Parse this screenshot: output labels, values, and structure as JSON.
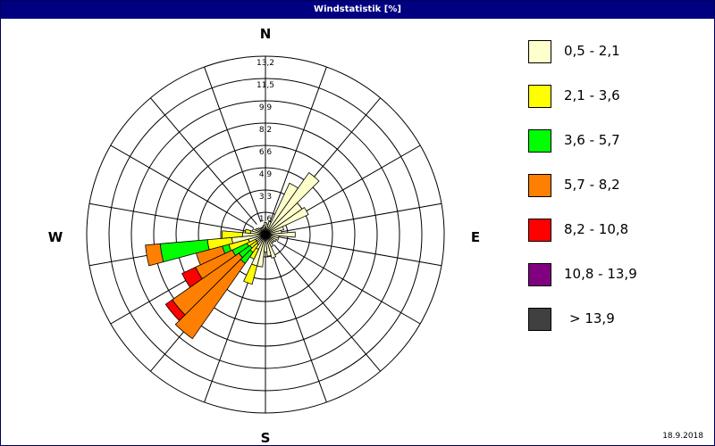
{
  "window": {
    "title": "Windstatistik [%]"
  },
  "footer": {
    "date": "18.9.2018"
  },
  "chart_data": {
    "type": "wind-rose",
    "title": "Windstatistik [%]",
    "compass": {
      "north": "N",
      "east": "E",
      "south": "S",
      "west": "W"
    },
    "radial_ticks": [
      "1,6",
      "3,3",
      "4,9",
      "6,6",
      "8,2",
      "9,9",
      "11,5",
      "13,2"
    ],
    "r_max": 13.2,
    "sectors": 36,
    "sector_width_deg": 10,
    "bins": [
      {
        "label": "0,5 - 2,1",
        "color": "#ffffcc"
      },
      {
        "label": "2,1 - 3,6",
        "color": "#ffff00"
      },
      {
        "label": "3,6 - 5,7",
        "color": "#00ff00"
      },
      {
        "label": "5,7 - 8,2",
        "color": "#ff8000"
      },
      {
        "label": "8,2 - 10,8",
        "color": "#ff0000"
      },
      {
        "label": "10,8 - 13,9",
        "color": "#800080"
      },
      {
        "label": "> 13,9",
        "color": "#404040"
      }
    ],
    "directions": [
      {
        "deg": 0,
        "values": [
          0.9,
          0,
          0,
          0,
          0,
          0,
          0
        ]
      },
      {
        "deg": 10,
        "values": [
          0.8,
          0,
          0,
          0,
          0,
          0,
          0
        ]
      },
      {
        "deg": 20,
        "values": [
          1.0,
          0,
          0,
          0,
          0,
          0,
          0
        ]
      },
      {
        "deg": 30,
        "values": [
          4.2,
          0,
          0,
          0,
          0,
          0,
          0
        ]
      },
      {
        "deg": 40,
        "values": [
          5.6,
          0,
          0,
          0,
          0,
          0,
          0
        ]
      },
      {
        "deg": 50,
        "values": [
          3.3,
          0,
          0,
          0,
          0,
          0,
          0
        ]
      },
      {
        "deg": 60,
        "values": [
          3.5,
          0,
          0,
          0,
          0,
          0,
          0
        ]
      },
      {
        "deg": 70,
        "values": [
          1.4,
          0,
          0,
          0,
          0,
          0,
          0
        ]
      },
      {
        "deg": 80,
        "values": [
          1.2,
          0,
          0,
          0,
          0,
          0,
          0
        ]
      },
      {
        "deg": 90,
        "values": [
          2.2,
          0,
          0,
          0,
          0,
          0,
          0
        ]
      },
      {
        "deg": 100,
        "values": [
          1.0,
          0,
          0,
          0,
          0,
          0,
          0
        ]
      },
      {
        "deg": 110,
        "values": [
          1.0,
          0,
          0,
          0,
          0,
          0,
          0
        ]
      },
      {
        "deg": 120,
        "values": [
          0.9,
          0,
          0,
          0,
          0,
          0,
          0
        ]
      },
      {
        "deg": 130,
        "values": [
          0.8,
          0,
          0,
          0,
          0,
          0,
          0
        ]
      },
      {
        "deg": 140,
        "values": [
          0.8,
          0,
          0,
          0,
          0,
          0,
          0
        ]
      },
      {
        "deg": 150,
        "values": [
          1.0,
          0,
          0,
          0,
          0,
          0,
          0
        ]
      },
      {
        "deg": 160,
        "values": [
          1.8,
          0,
          0,
          0,
          0,
          0,
          0
        ]
      },
      {
        "deg": 170,
        "values": [
          1.6,
          0,
          0,
          0,
          0,
          0,
          0
        ]
      },
      {
        "deg": 180,
        "values": [
          1.3,
          0,
          0,
          0,
          0,
          0,
          0
        ]
      },
      {
        "deg": 190,
        "values": [
          2.4,
          0,
          0,
          0,
          0,
          0,
          0
        ]
      },
      {
        "deg": 200,
        "values": [
          2.4,
          1.4,
          0,
          0,
          0,
          0,
          0
        ]
      },
      {
        "deg": 210,
        "values": [
          1.2,
          0.8,
          0,
          0,
          0,
          0,
          0
        ]
      },
      {
        "deg": 220,
        "values": [
          0.9,
          0.7,
          1.0,
          6.8,
          0,
          0,
          0
        ]
      },
      {
        "deg": 230,
        "values": [
          0.8,
          0.6,
          1.0,
          6.0,
          0.6,
          0,
          0
        ]
      },
      {
        "deg": 240,
        "values": [
          0.8,
          0.7,
          1.2,
          3.0,
          1.1,
          0,
          0
        ]
      },
      {
        "deg": 250,
        "values": [
          1.3,
          1.5,
          0.5,
          2.0,
          0,
          0,
          0
        ]
      },
      {
        "deg": 260,
        "values": [
          2.5,
          1.8,
          3.5,
          1.1,
          0,
          0,
          0
        ]
      },
      {
        "deg": 270,
        "values": [
          1.7,
          1.5,
          0,
          0,
          0,
          0,
          0
        ]
      },
      {
        "deg": 280,
        "values": [
          1.1,
          0.4,
          0,
          0,
          0,
          0,
          0
        ]
      },
      {
        "deg": 290,
        "values": [
          1.0,
          0,
          0,
          0,
          0,
          0,
          0
        ]
      },
      {
        "deg": 300,
        "values": [
          0.8,
          0,
          0,
          0,
          0,
          0,
          0
        ]
      },
      {
        "deg": 310,
        "values": [
          0.7,
          0,
          0,
          0,
          0,
          0,
          0
        ]
      },
      {
        "deg": 320,
        "values": [
          0.6,
          0,
          0,
          0,
          0,
          0,
          0
        ]
      },
      {
        "deg": 330,
        "values": [
          0.6,
          0,
          0,
          0,
          0,
          0,
          0
        ]
      },
      {
        "deg": 340,
        "values": [
          0.6,
          0,
          0,
          0,
          0,
          0,
          0
        ]
      },
      {
        "deg": 350,
        "values": [
          0.7,
          0,
          0,
          0,
          0,
          0,
          0
        ]
      }
    ]
  }
}
